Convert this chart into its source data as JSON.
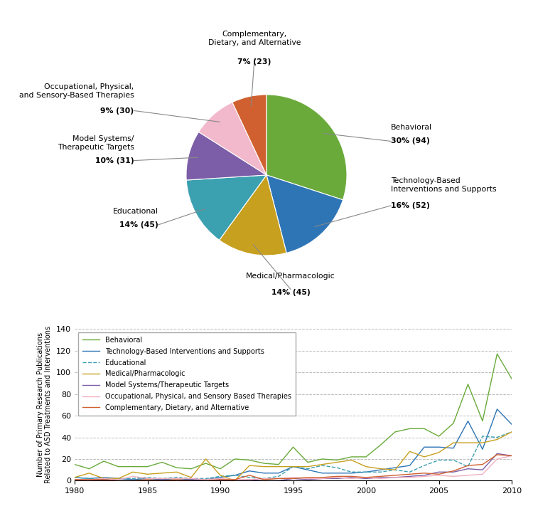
{
  "pie_values": [
    30,
    16,
    14,
    14,
    10,
    9,
    7
  ],
  "pie_colors": [
    "#6aaa3a",
    "#2e75b6",
    "#c8a020",
    "#3ba0b0",
    "#7b5ea7",
    "#f2b8cc",
    "#d06030"
  ],
  "years": [
    1980,
    1981,
    1982,
    1983,
    1984,
    1985,
    1986,
    1987,
    1988,
    1989,
    1990,
    1991,
    1992,
    1993,
    1994,
    1995,
    1996,
    1997,
    1998,
    1999,
    2000,
    2001,
    2002,
    2003,
    2004,
    2005,
    2006,
    2007,
    2008,
    2009,
    2010
  ],
  "behavioral": [
    15,
    11,
    18,
    13,
    13,
    13,
    17,
    12,
    11,
    16,
    11,
    20,
    19,
    16,
    15,
    31,
    17,
    20,
    19,
    22,
    22,
    33,
    45,
    48,
    48,
    41,
    53,
    89,
    55,
    117,
    94
  ],
  "technology": [
    3,
    2,
    3,
    2,
    1,
    2,
    1,
    2,
    1,
    1,
    3,
    5,
    9,
    7,
    7,
    13,
    10,
    7,
    7,
    7,
    8,
    10,
    12,
    14,
    31,
    31,
    30,
    55,
    29,
    66,
    52
  ],
  "educational": [
    3,
    2,
    1,
    2,
    2,
    3,
    2,
    3,
    2,
    2,
    4,
    5,
    3,
    2,
    4,
    13,
    11,
    14,
    12,
    8,
    8,
    8,
    10,
    8,
    14,
    19,
    19,
    13,
    41,
    40,
    45
  ],
  "medical": [
    3,
    7,
    2,
    2,
    8,
    6,
    7,
    8,
    3,
    20,
    5,
    0,
    14,
    13,
    13,
    13,
    13,
    15,
    17,
    19,
    13,
    11,
    10,
    27,
    22,
    26,
    35,
    35,
    35,
    38,
    45
  ],
  "model_systems": [
    1,
    0,
    1,
    0,
    0,
    0,
    1,
    0,
    1,
    0,
    1,
    0,
    1,
    0,
    0,
    2,
    1,
    2,
    2,
    3,
    2,
    3,
    3,
    4,
    5,
    8,
    8,
    11,
    10,
    25,
    23
  ],
  "occupational": [
    1,
    1,
    2,
    1,
    4,
    2,
    2,
    2,
    2,
    1,
    2,
    1,
    1,
    2,
    2,
    3,
    2,
    2,
    3,
    2,
    3,
    2,
    3,
    3,
    4,
    5,
    4,
    5,
    6,
    20,
    23
  ],
  "complementary": [
    1,
    1,
    1,
    0,
    0,
    1,
    0,
    1,
    0,
    0,
    1,
    1,
    5,
    1,
    2,
    2,
    3,
    3,
    4,
    4,
    3,
    4,
    5,
    6,
    7,
    6,
    9,
    14,
    15,
    24,
    23
  ],
  "ylabel": "Number of Primary Research Publications\nRelated to ASD Treatments and Interventions",
  "yticks": [
    0,
    20,
    40,
    60,
    80,
    100,
    120,
    140
  ],
  "xticks": [
    1980,
    1985,
    1990,
    1995,
    2000,
    2005,
    2010
  ],
  "line_colors": {
    "behavioral": "#6aaa3a",
    "technology": "#2e75b6",
    "educational": "#3ba0b0",
    "medical": "#c8a020",
    "model_systems": "#7b5ea7",
    "occupational": "#f2b0c0",
    "complementary": "#d06030"
  }
}
